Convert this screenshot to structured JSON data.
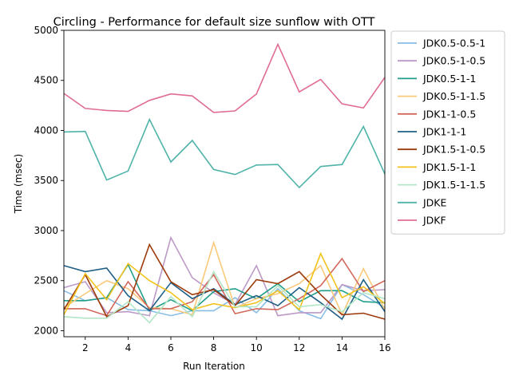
{
  "chart_data": {
    "type": "line",
    "title": "Circling - Performance for default size sunflow with OTT",
    "xlabel": "Run Iteration",
    "ylabel": "Time (msec)",
    "xlim": [
      1,
      16
    ],
    "ylim": [
      1940,
      5000
    ],
    "xticks": [
      2,
      4,
      6,
      8,
      10,
      12,
      14,
      16
    ],
    "yticks": [
      2000,
      2500,
      3000,
      3500,
      4000,
      4500,
      5000
    ],
    "legend_position": "outside-right",
    "grid": false,
    "x": [
      1,
      2,
      3,
      4,
      5,
      6,
      7,
      8,
      9,
      10,
      11,
      12,
      13,
      14,
      15,
      16
    ],
    "series": [
      {
        "name": "JDK0.5-0.5-1",
        "color": "#88bde6",
        "values": [
          2400,
          2300,
          2330,
          2210,
          2200,
          2150,
          2200,
          2200,
          2330,
          2180,
          2420,
          2200,
          2120,
          2460,
          2360,
          2230
        ]
      },
      {
        "name": "JDK0.5-1-0.5",
        "color": "#bc99c7",
        "values": [
          2430,
          2490,
          2180,
          2190,
          2150,
          2930,
          2530,
          2380,
          2260,
          2650,
          2150,
          2180,
          2180,
          2460,
          2400,
          2410
        ]
      },
      {
        "name": "JDK0.5-1-1",
        "color": "#1f9e89",
        "values": [
          2300,
          2300,
          2330,
          2660,
          2200,
          2310,
          2200,
          2390,
          2420,
          2320,
          2470,
          2290,
          2400,
          2400,
          2290,
          2280
        ]
      },
      {
        "name": "JDK0.5-1-1.5",
        "color": "#fbc97a",
        "values": [
          2230,
          2370,
          2500,
          2420,
          2230,
          2220,
          2160,
          2880,
          2230,
          2320,
          2370,
          2470,
          2650,
          2160,
          2620,
          2210
        ]
      },
      {
        "name": "JDK1-1-0.5",
        "color": "#d1665b",
        "values": [
          2220,
          2220,
          2150,
          2490,
          2220,
          2220,
          2290,
          2560,
          2170,
          2220,
          2210,
          2320,
          2450,
          2720,
          2390,
          2500
        ]
      },
      {
        "name": "JDK1-1-1",
        "color": "#1f5f86",
        "values": [
          2650,
          2590,
          2625,
          2350,
          2200,
          2480,
          2320,
          2420,
          2260,
          2350,
          2250,
          2430,
          2280,
          2115,
          2510,
          2190
        ]
      },
      {
        "name": "JDK1.5-1-0.5",
        "color": "#9c3a0a",
        "values": [
          2210,
          2560,
          2140,
          2250,
          2860,
          2490,
          2360,
          2410,
          2250,
          2510,
          2470,
          2590,
          2360,
          2160,
          2175,
          2115
        ]
      },
      {
        "name": "JDK1.5-1-1",
        "color": "#f2c21b",
        "values": [
          2160,
          2570,
          2310,
          2670,
          2500,
          2380,
          2210,
          2270,
          2230,
          2280,
          2400,
          2210,
          2770,
          2330,
          2440,
          2270
        ]
      },
      {
        "name": "JDK1.5-1-1.5",
        "color": "#b3e6c6",
        "values": [
          2140,
          2125,
          2125,
          2290,
          2080,
          2340,
          2140,
          2590,
          2240,
          2240,
          2450,
          2240,
          2260,
          2190,
          2380,
          2320
        ]
      },
      {
        "name": "JDKE",
        "color": "#4fb3a9",
        "values": [
          3985,
          3990,
          3505,
          3595,
          4110,
          3685,
          3900,
          3610,
          3560,
          3655,
          3660,
          3430,
          3640,
          3660,
          4040,
          3565
        ]
      },
      {
        "name": "JDKF",
        "color": "#e06c96",
        "values": [
          4370,
          4220,
          4200,
          4190,
          4300,
          4365,
          4345,
          4180,
          4195,
          4365,
          4860,
          4385,
          4510,
          4265,
          4225,
          4530
        ]
      }
    ]
  }
}
